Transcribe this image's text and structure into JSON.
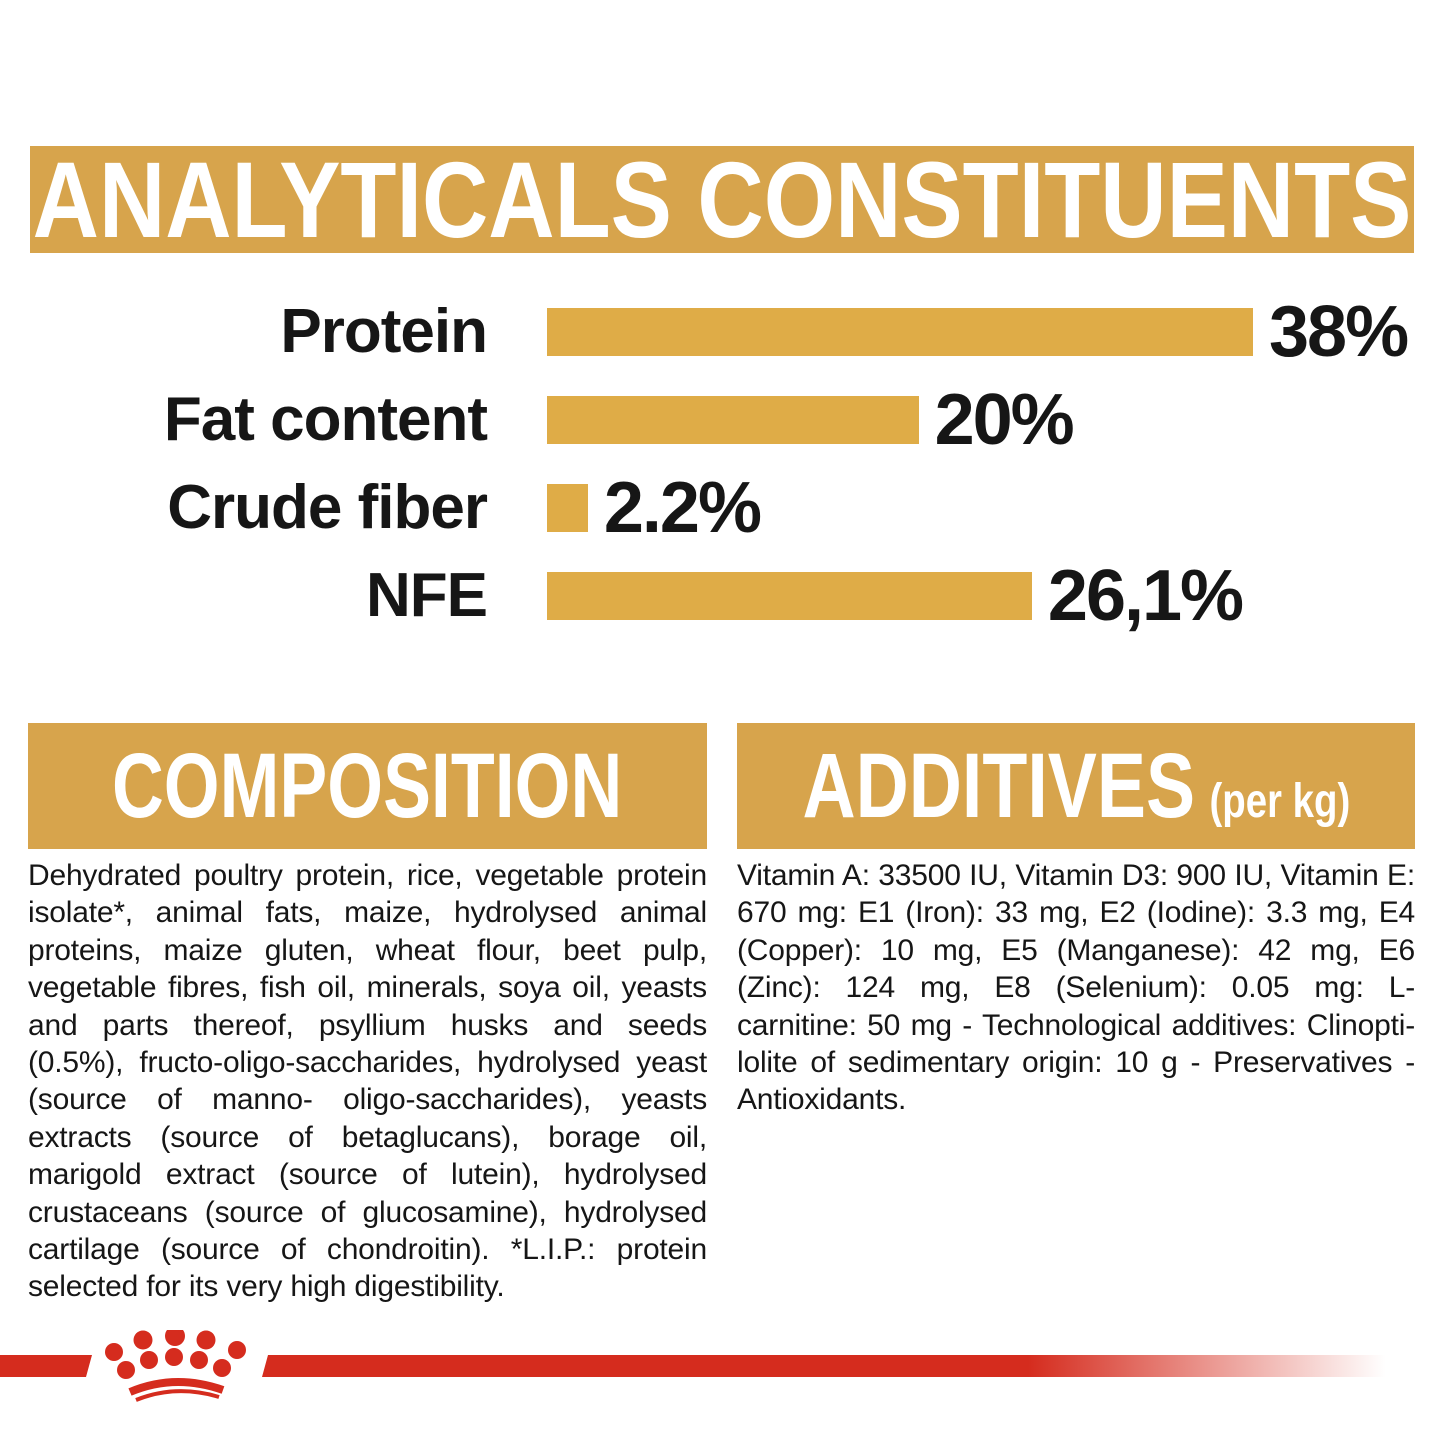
{
  "colors": {
    "gold_banner": "#D7A44C",
    "gold_bar": "#DFAC47",
    "red": "#D52C1E",
    "text": "#161616",
    "white": "#FFFFFF"
  },
  "chart_data": {
    "type": "bar",
    "orientation": "horizontal",
    "title": "ANALYTICALS CONSTITUENTS",
    "categories": [
      "Protein",
      "Fat content",
      "Crude fiber",
      "NFE"
    ],
    "values": [
      38,
      20,
      2.2,
      26.1
    ],
    "value_labels": [
      "38%",
      "20%",
      "2.2%",
      "26,1%"
    ],
    "xlim": [
      0,
      38
    ],
    "xlabel": "",
    "ylabel": "",
    "grid": false,
    "legend": "none",
    "bar_color": "#DFAC47",
    "label_color": "#161616"
  },
  "composition": {
    "title": "COMPOSITION",
    "body": "Dehydrated poultry protein, rice, vegetable protein isolate*, animal fats, maize, hydrolysed animal proteins, maize gluten, wheat flour, beet pulp, vegetable fibres, fish oil, minerals, soya oil, yeasts and parts thereof, psyllium husks and seeds (0.5%), fructo-oligo-saccharides, hydrolysed yeast (source of manno- oligo-saccharides), yeasts extracts (source of betaglucans), borage oil, marigold extract (source of lutein), hydrolysed crustaceans (source of glucosamine), hydrolysed cartilage (source of chondroitin). *L.I.P.: protein selected for its very high digestibility."
  },
  "additives": {
    "title": "ADDITIVES",
    "title_suffix": "(per kg)",
    "body": "Vitamin A: 33500 IU, Vitamin D3: 900 IU, Vitamin E: 670 mg: E1 (Iron): 33 mg, E2 (Iodine): 3.3 mg, E4 (Copper): 10 mg, E5 (Manganese): 42 mg, E6 (Zinc): 124 mg, E8 (Selenium): 0.05 mg: L-carnitine: 50 mg - Technological additives: Clinopti- lolite of sedimentary origin: 10 g - Preservatives - Antioxidants.",
    "footer_logo_icon": "royal-canin-crown-icon"
  }
}
